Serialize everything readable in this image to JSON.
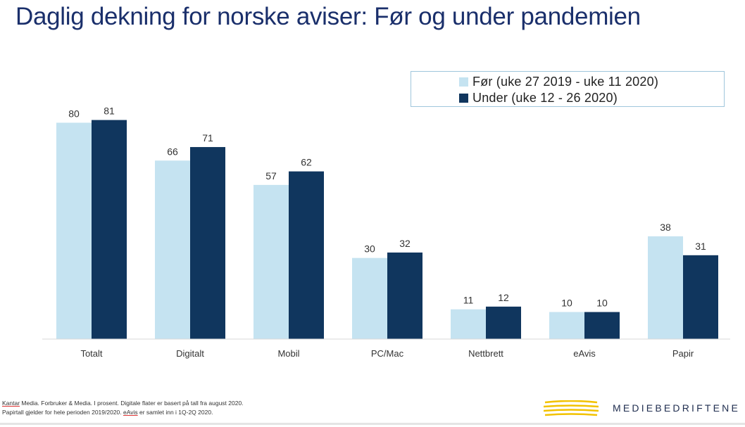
{
  "title": "Daglig dekning for norske aviser: Før og under pandemien",
  "chart_data": {
    "type": "bar",
    "categories": [
      "Totalt",
      "Digitalt",
      "Mobil",
      "PC/Mac",
      "Nettbrett",
      "eAvis",
      "Papir"
    ],
    "series": [
      {
        "name": "Før (uke 27 2019 - uke 11 2020)",
        "color": "#c5e3f1",
        "values": [
          80,
          66,
          57,
          30,
          11,
          10,
          38
        ]
      },
      {
        "name": "Under (uke 12 - 26 2020)",
        "color": "#10365e",
        "values": [
          81,
          71,
          62,
          32,
          12,
          10,
          31
        ]
      }
    ],
    "ylim": [
      0,
      90
    ],
    "grid": false,
    "legend_position": "top-right"
  },
  "footnote": {
    "line1_source": "Kantar",
    "line1_rest": " Media. Forbruker & Media. I prosent. Digitale flater er basert på tall fra august 2020.",
    "line2_start": "Papirtall gjelder for hele perioden 2019/2020. ",
    "line2_mark": "eAvis",
    "line2_end": " er samlet inn i 1Q-2Q 2020."
  },
  "brand": "MEDIEBEDRIFTENE",
  "logo_icon": "mediebedriftene-stripes-logo"
}
